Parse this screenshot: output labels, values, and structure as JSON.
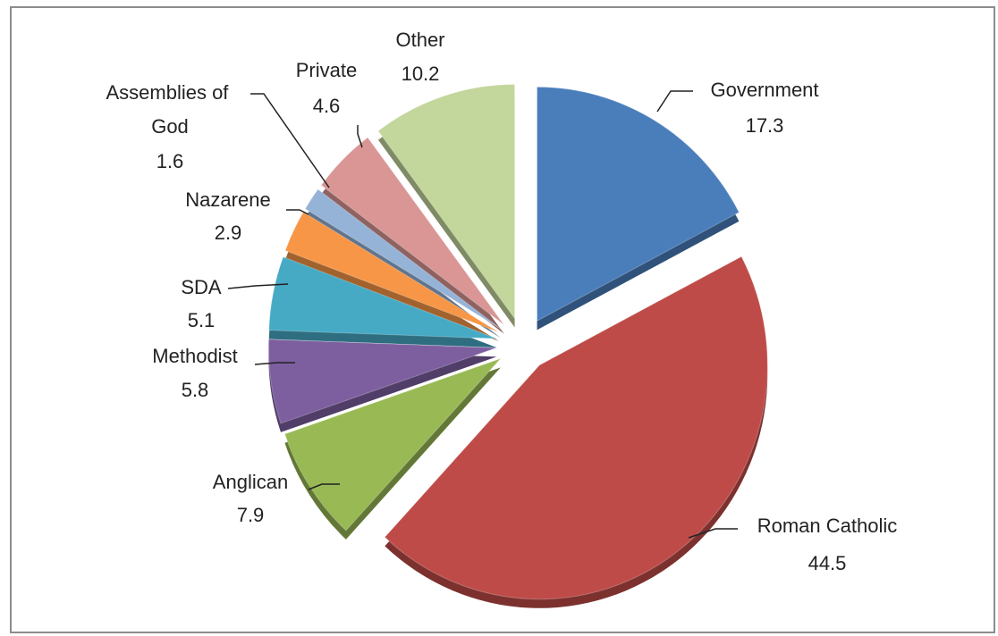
{
  "chart_data": {
    "type": "pie",
    "categories": [
      "Government",
      "Roman Catholic",
      "Anglican",
      "Methodist",
      "SDA",
      "Nazarene",
      "Assemblies of God",
      "Private",
      "Other"
    ],
    "values": [
      17.3,
      44.5,
      7.9,
      5.8,
      5.1,
      2.9,
      1.6,
      4.6,
      10.2
    ],
    "colors": [
      "#4a7ebb",
      "#be4b48",
      "#98b954",
      "#7d5fa0",
      "#46aac5",
      "#f79646",
      "#95b3d7",
      "#d99694",
      "#c3d69b"
    ]
  }
}
